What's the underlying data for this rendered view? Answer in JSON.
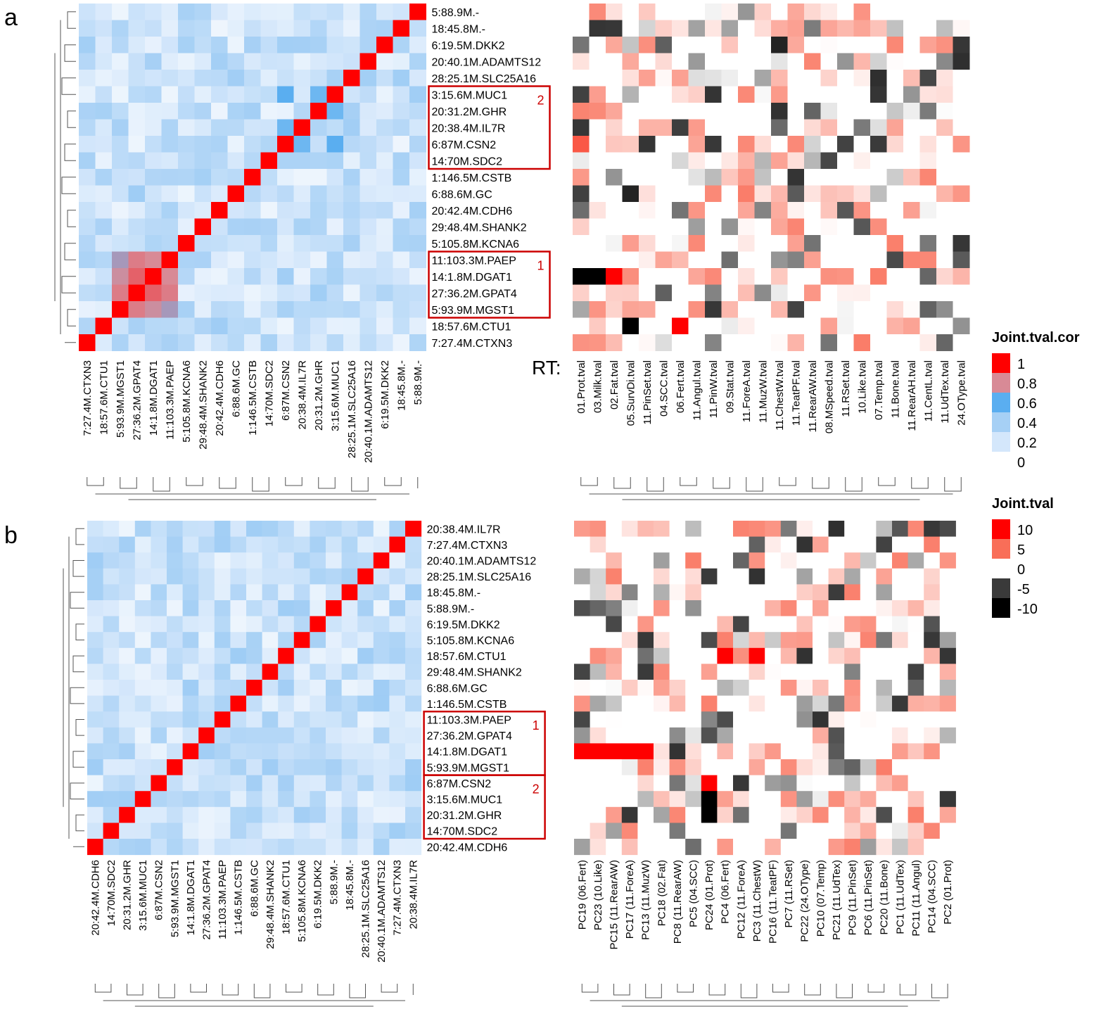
{
  "chart_data": [
    {
      "panel": "a",
      "type": "heatmap",
      "rows_top_to_bottom": [
        "5:88.9M.-",
        "18:45.8M.-",
        "6:19.5M.DKK2",
        "20:40.1M.ADAMTS12",
        "28:25.1M.SLC25A16",
        "3:15.6M.MUC1",
        "20:31.2M.GHR",
        "20:38.4M.IL7R",
        "6:87M.CSN2",
        "14:70M.SDC2",
        "1:146.5M.CSTB",
        "6:88.6M.GC",
        "20:42.4M.CDH6",
        "29:48.4M.SHANK2",
        "5:105.8M.KCNA6",
        "11:103.3M.PAEP",
        "14:1.8M.DGAT1",
        "27:36.2M.GPAT4",
        "5:93.9M.MGST1",
        "18:57.6M.CTU1",
        "7:27.4M.CTXN3"
      ],
      "correlation_columns": [
        "7:27.4M.CTXN3",
        "18:57.6M.CTU1",
        "5:93.9M.MGST1",
        "27:36.2M.GPAT4",
        "14:1.8M.DGAT1",
        "11:103.3M.PAEP",
        "5:105.8M.KCNA6",
        "29:48.4M.SHANK2",
        "20:42.4M.CDH6",
        "6:88.6M.GC",
        "1:146.5M.CSTB",
        "14:70M.SDC2",
        "6:87M.CSN2",
        "20:38.4M.IL7R",
        "20:31.2M.GHR",
        "3:15.6M.MUC1",
        "28:25.1M.SLC25A16",
        "20:40.1M.ADAMTS12",
        "6:19.5M.DKK2",
        "18:45.8M.-",
        "5:88.9M.-"
      ],
      "trait_axis_label": "RT:",
      "trait_columns": [
        "01.Prot.tval",
        "03.Milk.tval",
        "02.Fat.tval",
        "05.SurvDi.tval",
        "11.PinSet.tval",
        "04.SCC.tval",
        "06.Fert.tval",
        "11.Angul.tval",
        "11.PinW.tval",
        "09.Stat.tval",
        "11.ForeA.tval",
        "11.MuzW.tval",
        "11.ChestW.tval",
        "11.TeatPF.tval",
        "11.RearAW.tval",
        "08.MSpeed.tval",
        "11.RSet.tval",
        "10.Like.tval",
        "07.Temp.tval",
        "11.Bone.tval",
        "11.RearAH.tval",
        "11.CentL.tval",
        "11.UdTex.tval",
        "24.OType.tval"
      ],
      "highlight_groups": [
        {
          "label": "2",
          "members": [
            "3:15.6M.MUC1",
            "20:31.2M.GHR",
            "20:38.4M.IL7R",
            "6:87M.CSN2",
            "14:70M.SDC2"
          ]
        },
        {
          "label": "1",
          "members": [
            "11:103.3M.PAEP",
            "14:1.8M.DGAT1",
            "27:36.2M.GPAT4",
            "5:93.9M.MGST1"
          ]
        }
      ],
      "strong_correlations": [
        {
          "a": "5:93.9M.MGST1",
          "b": "27:36.2M.GPAT4",
          "r": 0.82
        },
        {
          "a": "5:93.9M.MGST1",
          "b": "14:1.8M.DGAT1",
          "r": 0.78
        },
        {
          "a": "5:93.9M.MGST1",
          "b": "11:103.3M.PAEP",
          "r": 0.72
        },
        {
          "a": "27:36.2M.GPAT4",
          "b": "14:1.8M.DGAT1",
          "r": 0.86
        },
        {
          "a": "27:36.2M.GPAT4",
          "b": "11:103.3M.PAEP",
          "r": 0.82
        },
        {
          "a": "14:1.8M.DGAT1",
          "b": "11:103.3M.PAEP",
          "r": 0.8
        },
        {
          "a": "3:15.6M.MUC1",
          "b": "6:87M.CSN2",
          "r": 0.6
        },
        {
          "a": "3:15.6M.MUC1",
          "b": "20:31.2M.GHR",
          "r": 0.55
        },
        {
          "a": "20:38.4M.IL7R",
          "b": "6:87M.CSN2",
          "r": 0.55
        }
      ],
      "notable_trait_tvals": [
        {
          "row": "14:1.8M.DGAT1",
          "trait": "01.Prot.tval",
          "value": -10
        },
        {
          "row": "14:1.8M.DGAT1",
          "trait": "03.Milk.tval",
          "value": -10
        },
        {
          "row": "14:1.8M.DGAT1",
          "trait": "02.Fat.tval",
          "value": 10
        },
        {
          "row": "18:57.6M.CTU1",
          "trait": "05.SurvDi.tval",
          "value": -10
        },
        {
          "row": "18:57.6M.CTU1",
          "trait": "06.Fert.tval",
          "value": 10
        },
        {
          "row": "6:88.6M.GC",
          "trait": "05.SurvDi.tval",
          "value": -7
        },
        {
          "row": "6:19.5M.DKK2",
          "trait": "11.ChestW.tval",
          "value": -7
        },
        {
          "row": "6:87M.CSN2",
          "trait": "01.Prot.tval",
          "value": 6
        }
      ]
    },
    {
      "panel": "b",
      "type": "heatmap",
      "rows_top_to_bottom": [
        "20:38.4M.IL7R",
        "7:27.4M.CTXN3",
        "20:40.1M.ADAMTS12",
        "28:25.1M.SLC25A16",
        "18:45.8M.-",
        "5:88.9M.-",
        "6:19.5M.DKK2",
        "5:105.8M.KCNA6",
        "18:57.6M.CTU1",
        "29:48.4M.SHANK2",
        "6:88.6M.GC",
        "1:146.5M.CSTB",
        "11:103.3M.PAEP",
        "27:36.2M.GPAT4",
        "14:1.8M.DGAT1",
        "5:93.9M.MGST1",
        "6:87M.CSN2",
        "3:15.6M.MUC1",
        "20:31.2M.GHR",
        "14:70M.SDC2",
        "20:42.4M.CDH6"
      ],
      "correlation_columns": [
        "20:42.4M.CDH6",
        "14:70M.SDC2",
        "20:31.2M.GHR",
        "3:15.6M.MUC1",
        "6:87M.CSN2",
        "5:93.9M.MGST1",
        "14:1.8M.DGAT1",
        "27:36.2M.GPAT4",
        "11:103.3M.PAEP",
        "1:146.5M.CSTB",
        "6:88.6M.GC",
        "29:48.4M.SHANK2",
        "18:57.6M.CTU1",
        "5:105.8M.KCNA6",
        "6:19.5M.DKK2",
        "5:88.9M.-",
        "18:45.8M.-",
        "28:25.1M.SLC25A16",
        "20:40.1M.ADAMTS12",
        "7:27.4M.CTXN3",
        "20:38.4M.IL7R"
      ],
      "trait_columns": [
        "PC19 (06.Fert)",
        "PC23 (10.Like)",
        "PC15 (11.RearAW)",
        "PC17 (11.ForeA)",
        "PC13 (11.MuzW)",
        "PC18 (02.Fat)",
        "PC8 (11.RearAW)",
        "PC5 (04.SCC)",
        "PC24 (01.Prot)",
        "PC4 (06.Fert)",
        "PC12 (11.ForeA)",
        "PC3 (11.ChestW)",
        "PC16 (11.TeatPF)",
        "PC7 (11.RSet)",
        "PC22 (24.OType)",
        "PC10 (07.Temp)",
        "PC21 (11.UdTex)",
        "PC9 (11.PinSet)",
        "PC6 (11.PinSet)",
        "PC20 (11.Bone)",
        "PC1 (11.UdTex)",
        "PC11 (11.Angul)",
        "PC14 (04.SCC)",
        "PC2 (01.Prot)"
      ],
      "highlight_groups": [
        {
          "label": "1",
          "members": [
            "11:103.3M.PAEP",
            "27:36.2M.GPAT4",
            "14:1.8M.DGAT1",
            "5:93.9M.MGST1"
          ]
        },
        {
          "label": "2",
          "members": [
            "6:87M.CSN2",
            "3:15.6M.MUC1",
            "20:31.2M.GHR",
            "14:70M.SDC2"
          ]
        }
      ],
      "notable_trait_tvals": [
        {
          "row": "14:1.8M.DGAT1",
          "trait": "PC19 (06.Fert)",
          "value": 10
        },
        {
          "row": "14:1.8M.DGAT1",
          "trait": "PC23 (10.Like)",
          "value": 10
        },
        {
          "row": "14:1.8M.DGAT1",
          "trait": "PC15 (11.RearAW)",
          "value": 10
        },
        {
          "row": "14:1.8M.DGAT1",
          "trait": "PC17 (11.ForeA)",
          "value": 10
        },
        {
          "row": "14:1.8M.DGAT1",
          "trait": "PC13 (11.MuzW)",
          "value": 10
        },
        {
          "row": "6:87M.CSN2",
          "trait": "PC24 (01.Prot)",
          "value": 10
        },
        {
          "row": "3:15.6M.MUC1",
          "trait": "PC24 (01.Prot)",
          "value": -10
        },
        {
          "row": "20:31.2M.GHR",
          "trait": "PC24 (01.Prot)",
          "value": -10
        },
        {
          "row": "18:57.6M.CTU1",
          "trait": "PC4 (06.Fert)",
          "value": 10
        },
        {
          "row": "18:57.6M.CTU1",
          "trait": "PC3 (11.ChestW)",
          "value": 10
        }
      ]
    }
  ],
  "panel_letters": [
    "a",
    "b"
  ],
  "legend_cor": {
    "title": "Joint.tval.cor",
    "labels": [
      "1",
      "0.8",
      "0.6",
      "0.4",
      "0.2",
      "0"
    ],
    "colors": [
      "#ff0000",
      "#d88a96",
      "#5aaef0",
      "#a6d0f5",
      "#d4e7fb",
      "#ffffff"
    ]
  },
  "legend_tval": {
    "title": "Joint.tval",
    "labels": [
      "10",
      "5",
      "0",
      "-5",
      "-10"
    ],
    "colors": [
      "#ff0000",
      "#f96e58",
      "#ffffff",
      "#3a3a3a",
      "#000000"
    ]
  },
  "colors": {
    "highlight_box": "#cc0000",
    "box_number": "#cc0000"
  }
}
